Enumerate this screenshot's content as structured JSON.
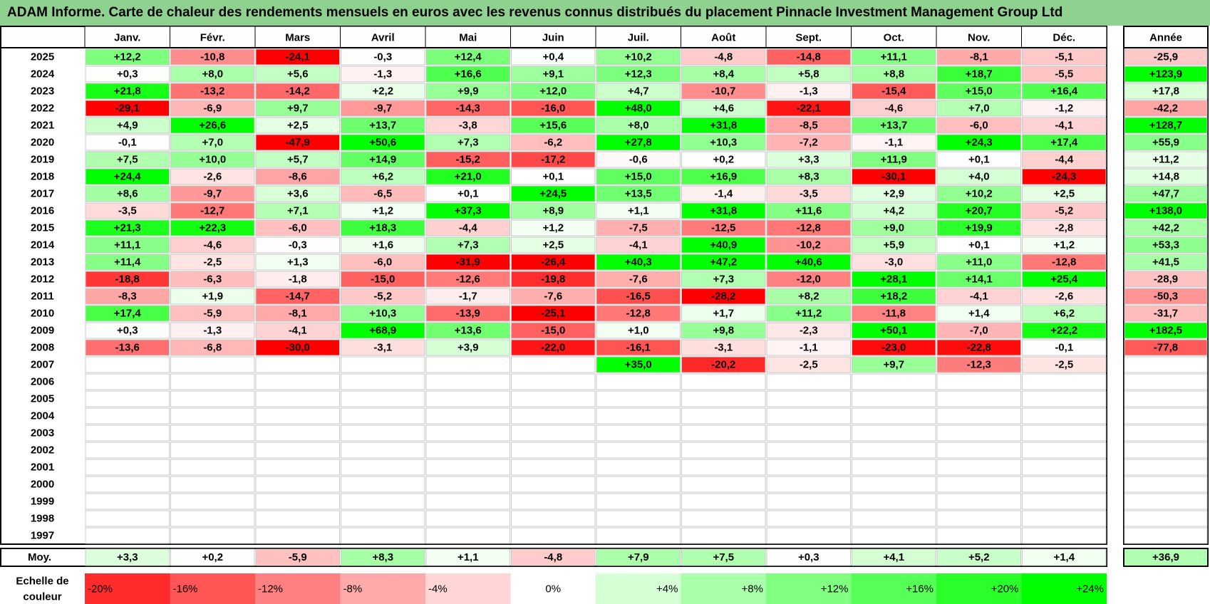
{
  "title": "ADAM Informe. Carte de chaleur des rendements mensuels en euros avec les revenus connus distribués du placement Pinnacle Investment Management Group Ltd",
  "chart_data": {
    "type": "heatmap",
    "months": [
      "Janv.",
      "Févr.",
      "Mars",
      "Avril",
      "Mai",
      "Juin",
      "Juil.",
      "Août",
      "Sept.",
      "Oct.",
      "Nov.",
      "Déc."
    ],
    "year_header": "Année",
    "rows": [
      {
        "year": "2025",
        "values": [
          "+12,2",
          "-10,8",
          "-24,1",
          "-0,3",
          "+12,4",
          "+0,4",
          "+10,2",
          "-4,8",
          "-14,8",
          "+11,1",
          "-8,1",
          "-5,1"
        ],
        "annual": "-25,9"
      },
      {
        "year": "2024",
        "values": [
          "+0,3",
          "+8,0",
          "+5,6",
          "-1,3",
          "+16,6",
          "+9,1",
          "+12,3",
          "+8,4",
          "+5,8",
          "+8,8",
          "+18,7",
          "-5,5"
        ],
        "annual": "+123,9"
      },
      {
        "year": "2023",
        "values": [
          "+21,8",
          "-13,2",
          "-14,2",
          "+2,2",
          "+9,9",
          "+12,0",
          "+4,7",
          "-10,7",
          "-1,3",
          "-15,4",
          "+15,0",
          "+16,4"
        ],
        "annual": "+17,8"
      },
      {
        "year": "2022",
        "values": [
          "-29,1",
          "-6,9",
          "+9,7",
          "-9,7",
          "-14,3",
          "-16,0",
          "+48,0",
          "+4,6",
          "-22,1",
          "-4,6",
          "+7,0",
          "-1,2"
        ],
        "annual": "-42,2"
      },
      {
        "year": "2021",
        "values": [
          "+4,9",
          "+26,6",
          "+2,5",
          "+13,7",
          "-3,8",
          "+15,6",
          "+8,0",
          "+31,8",
          "-8,5",
          "+13,7",
          "-6,0",
          "-4,1"
        ],
        "annual": "+128,7"
      },
      {
        "year": "2020",
        "values": [
          "-0,1",
          "+7,0",
          "-47,9",
          "+50,6",
          "+7,3",
          "-6,2",
          "+27,8",
          "+10,3",
          "-7,2",
          "-1,1",
          "+24,3",
          "+17,4"
        ],
        "annual": "+55,9"
      },
      {
        "year": "2019",
        "values": [
          "+7,5",
          "+10,0",
          "+5,7",
          "+14,9",
          "-15,2",
          "-17,2",
          "-0,6",
          "+0,2",
          "+3,3",
          "+11,9",
          "+0,1",
          "-4,4"
        ],
        "annual": "+11,2"
      },
      {
        "year": "2018",
        "values": [
          "+24,4",
          "-2,6",
          "-8,6",
          "+6,2",
          "+21,0",
          "+0,1",
          "+15,0",
          "+16,9",
          "+8,3",
          "-30,1",
          "+4,0",
          "-24,3"
        ],
        "annual": "+14,8"
      },
      {
        "year": "2017",
        "values": [
          "+8,6",
          "-9,7",
          "+3,6",
          "-6,5",
          "+0,1",
          "+24,5",
          "+13,5",
          "-1,4",
          "-3,5",
          "+2,9",
          "+10,2",
          "+2,5"
        ],
        "annual": "+47,7"
      },
      {
        "year": "2016",
        "values": [
          "-3,5",
          "-12,7",
          "+7,1",
          "+1,2",
          "+37,3",
          "+8,9",
          "+1,1",
          "+31,8",
          "+11,6",
          "+4,2",
          "+20,7",
          "-5,2"
        ],
        "annual": "+138,0"
      },
      {
        "year": "2015",
        "values": [
          "+21,3",
          "+22,3",
          "-6,0",
          "+18,3",
          "-4,4",
          "+1,2",
          "-7,5",
          "-12,5",
          "-12,8",
          "+9,0",
          "+19,9",
          "-2,8"
        ],
        "annual": "+42,2"
      },
      {
        "year": "2014",
        "values": [
          "+11,1",
          "-4,6",
          "-0,3",
          "+1,6",
          "+7,3",
          "+2,5",
          "-4,1",
          "+40,9",
          "-10,2",
          "+5,9",
          "+0,1",
          "+1,2"
        ],
        "annual": "+53,3"
      },
      {
        "year": "2013",
        "values": [
          "+11,4",
          "-2,5",
          "+1,3",
          "-6,0",
          "-31,9",
          "-26,4",
          "+40,3",
          "+47,2",
          "+40,6",
          "-3,0",
          "+11,0",
          "-12,8"
        ],
        "annual": "+41,5"
      },
      {
        "year": "2012",
        "values": [
          "-18,8",
          "-6,3",
          "-1,8",
          "-15,0",
          "-12,6",
          "-19,8",
          "-7,6",
          "+7,3",
          "-12,0",
          "+28,1",
          "+14,1",
          "+25,4"
        ],
        "annual": "-28,9"
      },
      {
        "year": "2011",
        "values": [
          "-8,3",
          "+1,9",
          "-14,7",
          "-5,2",
          "-1,7",
          "-7,6",
          "-16,5",
          "-28,2",
          "+8,2",
          "+18,2",
          "-4,1",
          "-2,6"
        ],
        "annual": "-50,3"
      },
      {
        "year": "2010",
        "values": [
          "+17,4",
          "-5,9",
          "-8,1",
          "+10,3",
          "-13,9",
          "-25,1",
          "-12,8",
          "+1,7",
          "+11,2",
          "-11,8",
          "+1,4",
          "+6,2"
        ],
        "annual": "-31,7"
      },
      {
        "year": "2009",
        "values": [
          "+0,3",
          "-1,3",
          "-4,1",
          "+68,9",
          "+13,6",
          "-15,0",
          "+1,0",
          "+9,8",
          "-2,3",
          "+50,1",
          "-7,0",
          "+22,2"
        ],
        "annual": "+182,5"
      },
      {
        "year": "2008",
        "values": [
          "-13,6",
          "-6,8",
          "-30,0",
          "-3,1",
          "+3,9",
          "-22,0",
          "-16,1",
          "-3,1",
          "-1,1",
          "-23,0",
          "-22,8",
          "-0,1"
        ],
        "annual": "-77,8"
      },
      {
        "year": "2007",
        "values": [
          "",
          "",
          "",
          "",
          "",
          "",
          "+35,0",
          "-20,2",
          "-2,5",
          "+9,7",
          "-12,3",
          "-2,5"
        ],
        "annual": ""
      },
      {
        "year": "2006",
        "values": [
          "",
          "",
          "",
          "",
          "",
          "",
          "",
          "",
          "",
          "",
          "",
          ""
        ],
        "annual": ""
      },
      {
        "year": "2005",
        "values": [
          "",
          "",
          "",
          "",
          "",
          "",
          "",
          "",
          "",
          "",
          "",
          ""
        ],
        "annual": ""
      },
      {
        "year": "2004",
        "values": [
          "",
          "",
          "",
          "",
          "",
          "",
          "",
          "",
          "",
          "",
          "",
          ""
        ],
        "annual": ""
      },
      {
        "year": "2003",
        "values": [
          "",
          "",
          "",
          "",
          "",
          "",
          "",
          "",
          "",
          "",
          "",
          ""
        ],
        "annual": ""
      },
      {
        "year": "2002",
        "values": [
          "",
          "",
          "",
          "",
          "",
          "",
          "",
          "",
          "",
          "",
          "",
          ""
        ],
        "annual": ""
      },
      {
        "year": "2001",
        "values": [
          "",
          "",
          "",
          "",
          "",
          "",
          "",
          "",
          "",
          "",
          "",
          ""
        ],
        "annual": ""
      },
      {
        "year": "2000",
        "values": [
          "",
          "",
          "",
          "",
          "",
          "",
          "",
          "",
          "",
          "",
          "",
          ""
        ],
        "annual": ""
      },
      {
        "year": "1999",
        "values": [
          "",
          "",
          "",
          "",
          "",
          "",
          "",
          "",
          "",
          "",
          "",
          ""
        ],
        "annual": ""
      },
      {
        "year": "1998",
        "values": [
          "",
          "",
          "",
          "",
          "",
          "",
          "",
          "",
          "",
          "",
          "",
          ""
        ],
        "annual": ""
      },
      {
        "year": "1997",
        "values": [
          "",
          "",
          "",
          "",
          "",
          "",
          "",
          "",
          "",
          "",
          "",
          ""
        ],
        "annual": ""
      }
    ],
    "average": {
      "label": "Moy.",
      "values": [
        "+3,3",
        "+0,2",
        "-5,9",
        "+8,3",
        "+1,1",
        "-4,8",
        "+7,9",
        "+7,5",
        "+0,3",
        "+4,1",
        "+5,2",
        "+1,4"
      ],
      "annual": "+36,9"
    },
    "scale": {
      "label": "Echelle de couleur",
      "items": [
        "-20%",
        "-16%",
        "-12%",
        "-8%",
        "-4%",
        "0%",
        "+4%",
        "+8%",
        "+12%",
        "+16%",
        "+20%",
        "+24%"
      ]
    },
    "colors": {
      "title_bg": "#8fd18f",
      "negative": "#ff0000",
      "positive": "#00ff00",
      "neutral": "#ffffff"
    }
  }
}
